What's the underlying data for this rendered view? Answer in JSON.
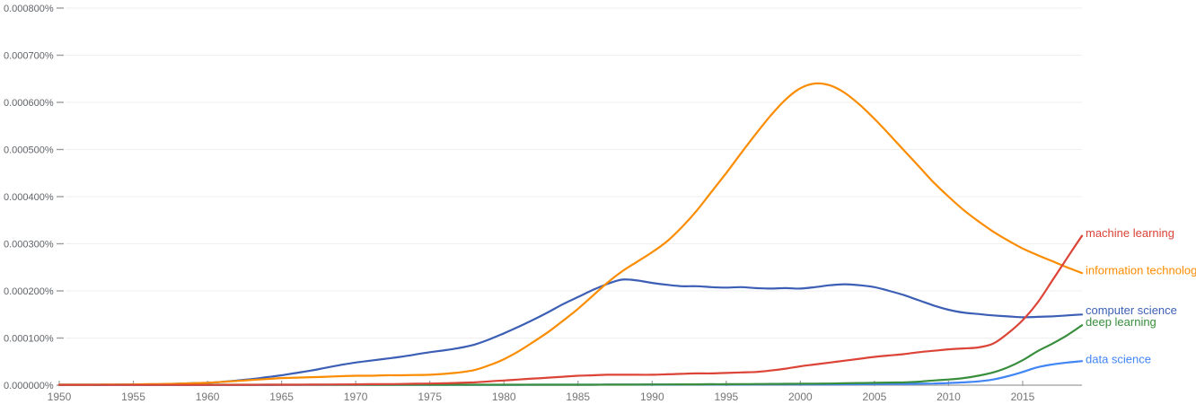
{
  "canvas": {
    "background": "#ffffff"
  },
  "chart_data": {
    "type": "line",
    "title": "",
    "xlabel": "",
    "ylabel": "",
    "grid": "horizontal",
    "legend_position": "right edge, labels placed at each line endpoint",
    "xlim": [
      1950,
      2019
    ],
    "y_unit_note": "values are in millionths of a percent: 100 = 0.000100% of corpus",
    "ylim_e6": [
      0,
      800
    ],
    "x_tick_labels": [
      "1950",
      "1955",
      "1960",
      "1965",
      "1970",
      "1975",
      "1980",
      "1985",
      "1990",
      "1995",
      "2000",
      "2005",
      "2010",
      "2015"
    ],
    "y_tick_labels": [
      "0.000000%",
      "0.000100%",
      "0.000200%",
      "0.000300%",
      "0.000400%",
      "0.000500%",
      "0.000600%",
      "0.000700%",
      "0.000800%"
    ],
    "style": {
      "gridline_color": "#efefef",
      "axis_color": "#9e9e9e",
      "tick_color": "#9e9e9e",
      "y_label_color": "#5f6368",
      "x_label_color": "#757575"
    },
    "years": [
      1950,
      1951,
      1952,
      1953,
      1954,
      1955,
      1956,
      1957,
      1958,
      1959,
      1960,
      1961,
      1962,
      1963,
      1964,
      1965,
      1966,
      1967,
      1968,
      1969,
      1970,
      1971,
      1972,
      1973,
      1974,
      1975,
      1976,
      1977,
      1978,
      1979,
      1980,
      1981,
      1982,
      1983,
      1984,
      1985,
      1986,
      1987,
      1988,
      1989,
      1990,
      1991,
      1992,
      1993,
      1994,
      1995,
      1996,
      1997,
      1998,
      1999,
      2000,
      2001,
      2002,
      2003,
      2004,
      2005,
      2006,
      2007,
      2008,
      2009,
      2010,
      2011,
      2012,
      2013,
      2014,
      2015,
      2016,
      2017,
      2018,
      2019
    ],
    "series": [
      {
        "name": "machine learning",
        "color": "#db4437",
        "values": [
          0.5,
          0.5,
          0.5,
          0.5,
          0.5,
          0.5,
          0.5,
          0.5,
          0.5,
          0.5,
          0.6,
          0.6,
          0.7,
          0.8,
          0.9,
          1,
          1,
          1.2,
          1.4,
          1.6,
          1.8,
          2,
          2.2,
          2.5,
          3,
          3.5,
          4,
          5,
          6,
          8,
          10,
          12,
          14,
          16,
          18,
          20,
          21,
          22,
          22,
          22,
          22,
          23,
          24,
          25,
          25,
          26,
          27,
          28,
          31,
          35,
          40,
          44,
          48,
          52,
          56,
          60,
          63,
          66,
          70,
          73,
          76,
          78,
          80,
          88,
          110,
          138,
          175,
          222,
          270,
          317
        ]
      },
      {
        "name": "information technology",
        "color": "#fb8c00",
        "values": [
          1,
          1,
          1,
          1.2,
          1.4,
          1.6,
          2,
          2.5,
          3,
          4,
          5,
          7,
          9,
          11,
          13,
          15,
          16,
          17,
          18,
          19,
          20,
          20,
          21,
          21,
          21.5,
          22,
          24,
          27,
          32,
          42,
          55,
          72,
          92,
          113,
          137,
          162,
          190,
          218,
          242,
          262,
          282,
          305,
          335,
          370,
          410,
          450,
          492,
          533,
          572,
          606,
          630,
          640,
          636,
          620,
          595,
          565,
          532,
          498,
          464,
          430,
          400,
          372,
          348,
          326,
          307,
          290,
          276,
          263,
          250,
          238
        ]
      },
      {
        "name": "computer science",
        "color": "#3c5fb5",
        "values": [
          1,
          1,
          1,
          1,
          1.2,
          1.5,
          1.8,
          2.2,
          3,
          4,
          5,
          7,
          10,
          13,
          17,
          21,
          26,
          31,
          37,
          43,
          48,
          52,
          56,
          60,
          65,
          70,
          74,
          79,
          86,
          97,
          110,
          124,
          139,
          155,
          172,
          187,
          202,
          215,
          224,
          222,
          217,
          213,
          210,
          210,
          208,
          207,
          208,
          206,
          205,
          206,
          205,
          208,
          212,
          214,
          212,
          208,
          200,
          191,
          180,
          169,
          160,
          154,
          151,
          148,
          146,
          144,
          145,
          146,
          148,
          150
        ]
      },
      {
        "name": "deep learning",
        "color": "#388e3c",
        "values": [
          1,
          1,
          1,
          1,
          1,
          1,
          1,
          1,
          1,
          1,
          1,
          1,
          1,
          1,
          1,
          1,
          1,
          1,
          1,
          1,
          1,
          1,
          1,
          1,
          1,
          1,
          1,
          1,
          1,
          1,
          1,
          1,
          1,
          1,
          1,
          1,
          1,
          1.1,
          1.2,
          1.3,
          1.5,
          1.6,
          1.7,
          1.8,
          2,
          2,
          2.2,
          2.4,
          2.6,
          2.8,
          3,
          3.2,
          3.5,
          4,
          4.5,
          5,
          5.5,
          6,
          7.5,
          10,
          12,
          15,
          20,
          27,
          38,
          53,
          72,
          88,
          106,
          127
        ]
      },
      {
        "name": "data science",
        "color": "#4285f4",
        "values": [
          0.3,
          0.3,
          0.3,
          0.3,
          0.3,
          0.3,
          0.3,
          0.3,
          0.3,
          0.3,
          0.4,
          0.4,
          0.4,
          0.4,
          0.4,
          0.5,
          0.5,
          0.5,
          0.5,
          0.6,
          0.6,
          0.6,
          0.6,
          0.7,
          0.7,
          0.7,
          0.7,
          0.8,
          0.8,
          0.8,
          0.8,
          0.8,
          0.9,
          0.9,
          1,
          1,
          1,
          1.1,
          1.1,
          1.2,
          1.2,
          1.2,
          1.3,
          1.3,
          1.4,
          1.4,
          1.4,
          1.5,
          1.5,
          1.6,
          1.6,
          1.7,
          1.8,
          1.9,
          2,
          2.2,
          2.4,
          2.6,
          3,
          3.5,
          4.5,
          6,
          8,
          12,
          19,
          28,
          38,
          44,
          48,
          51
        ]
      }
    ]
  }
}
